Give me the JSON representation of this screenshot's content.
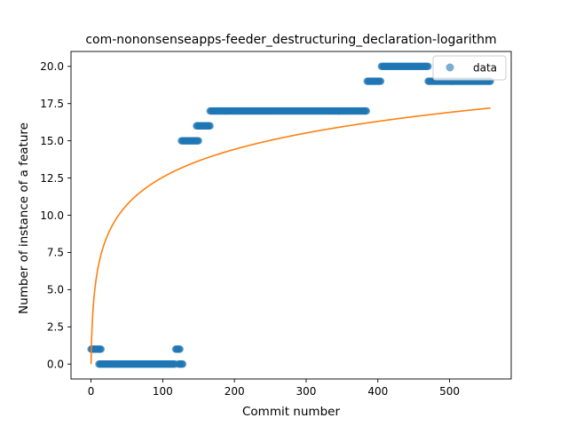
{
  "chart_data": {
    "type": "scatter",
    "title": "com-nononsenseapps-feeder_destructuring_declaration-logarithm",
    "xlabel": "Commit number",
    "ylabel": "Number of instance of a feature",
    "xlim": [
      -27.9,
      585.9
    ],
    "ylim": [
      -1.0,
      21.0
    ],
    "x_ticks": [
      0,
      100,
      200,
      300,
      400,
      500
    ],
    "y_ticks": [
      0.0,
      2.5,
      5.0,
      7.5,
      10.0,
      12.5,
      15.0,
      17.5,
      20.0
    ],
    "y_tick_labels": [
      "0.0",
      "2.5",
      "5.0",
      "7.5",
      "10.0",
      "12.5",
      "15.0",
      "17.5",
      "20.0"
    ],
    "grid": false,
    "legend": {
      "position": "top-right",
      "entries": [
        "data"
      ]
    },
    "colors": {
      "data": "#1f77b4",
      "fit": "#ff7f0e"
    },
    "series": [
      {
        "name": "data",
        "kind": "scatter",
        "segments": [
          {
            "x_start": 0,
            "x_end": 14,
            "y": 1
          },
          {
            "x_start": 11,
            "x_end": 117,
            "y": 0
          },
          {
            "x_start": 118,
            "x_end": 124,
            "y": 1
          },
          {
            "x_start": 122,
            "x_end": 128,
            "y": 0
          },
          {
            "x_start": 126,
            "x_end": 150,
            "y": 15
          },
          {
            "x_start": 147,
            "x_end": 166,
            "y": 16
          },
          {
            "x_start": 166,
            "x_end": 384,
            "y": 17
          },
          {
            "x_start": 385,
            "x_end": 404,
            "y": 19
          },
          {
            "x_start": 405,
            "x_end": 470,
            "y": 20
          },
          {
            "x_start": 470,
            "x_end": 557,
            "y": 19
          }
        ]
      },
      {
        "kind": "line",
        "x_range": [
          0,
          557
        ],
        "function": "y = 2.72 * ln(x + 1)"
      }
    ]
  }
}
